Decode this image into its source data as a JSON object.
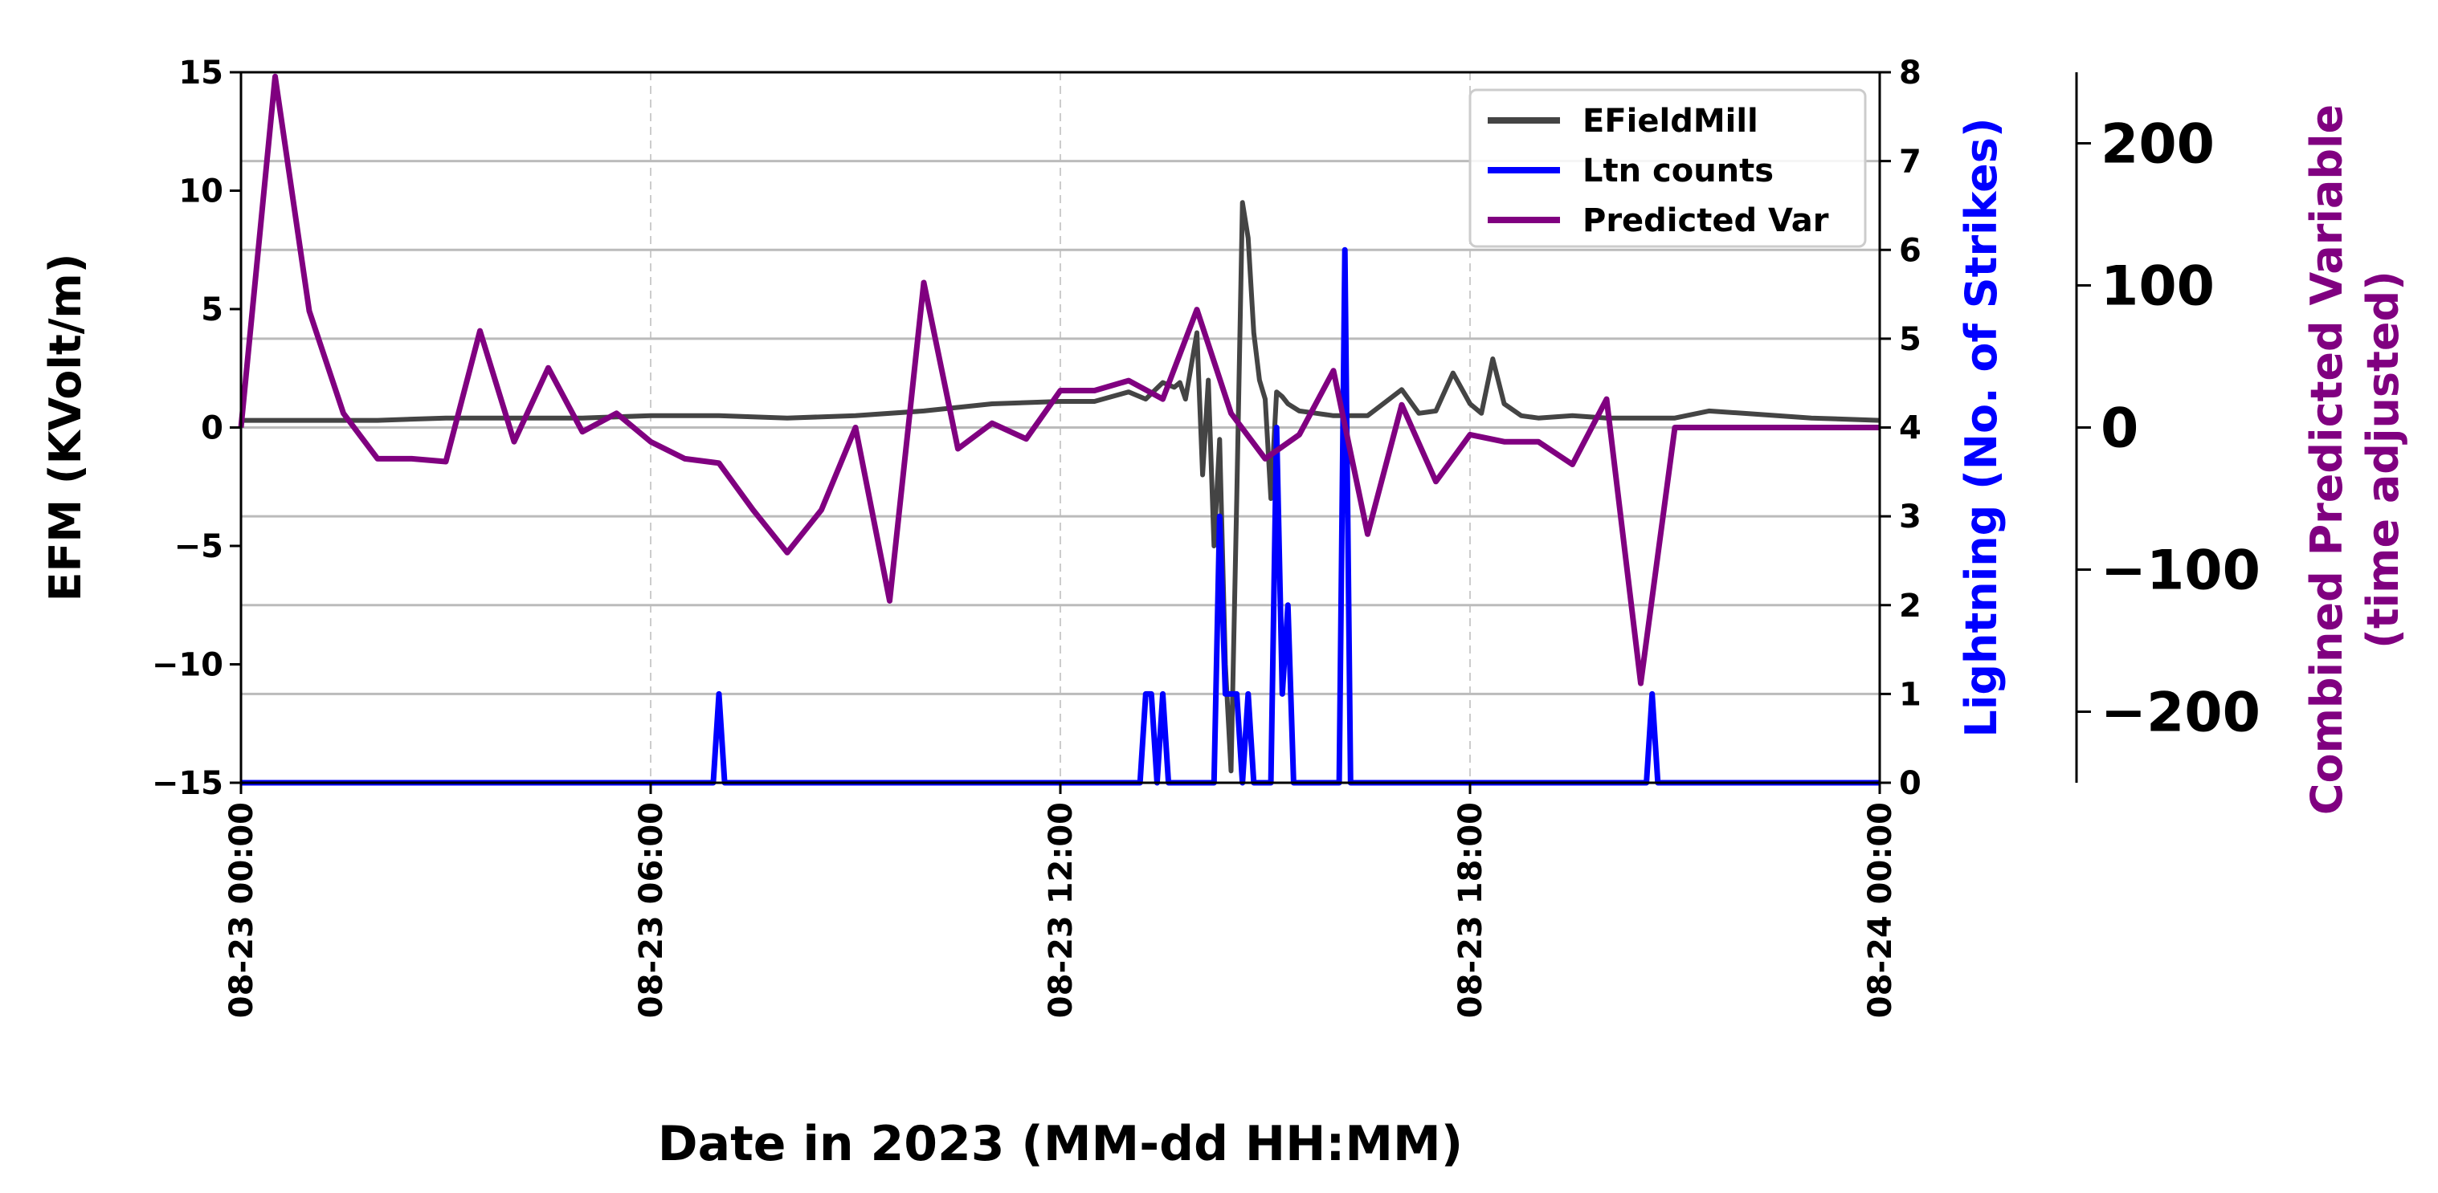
{
  "chart_data": {
    "type": "line",
    "xlabel": "Date in 2023 (MM-dd HH:MM)",
    "xlim": [
      "08-23 00:00",
      "08-24 00:00"
    ],
    "x_ticks": [
      "08-23 00:00",
      "08-23 06:00",
      "08-23 12:00",
      "08-23 18:00",
      "08-24 00:00"
    ],
    "left_axis": {
      "label": "EFM (KVolt/m)",
      "ylim": [
        -15,
        15
      ],
      "ticks": [
        15,
        10,
        5,
        0,
        -5,
        -10,
        -15
      ],
      "tick_labels": [
        "15",
        "10",
        "5",
        "0",
        "−5",
        "−10",
        "−15"
      ]
    },
    "right_axis": {
      "label": "Lightning (No. of Strikes)",
      "color": "#0000ff",
      "ylim": [
        0,
        8
      ],
      "ticks": [
        8,
        7,
        6,
        5,
        4,
        3,
        2,
        1,
        0
      ],
      "tick_labels": [
        "8",
        "7",
        "6",
        "5",
        "4",
        "3",
        "2",
        "1",
        "0"
      ]
    },
    "outer_axis": {
      "label_line1": "Combined Predicted Variable",
      "label_line2": "(time adjusted)",
      "color": "#800080",
      "ylim": [
        -250,
        250
      ],
      "ticks": [
        200,
        100,
        0,
        -100,
        -200
      ],
      "tick_labels": [
        "200",
        "100",
        "0",
        "−100",
        "−200"
      ]
    },
    "grid": "vertical dashed at x ticks; horizontal at right-axis ticks",
    "legend_position": "top-right",
    "legend": [
      "EFieldMill",
      "Ltn counts",
      "Predicted Var"
    ],
    "series": [
      {
        "name": "EFieldMill",
        "axis": "left",
        "color": "#444444",
        "x": [
          "08-23 00:00",
          "08-23 01:00",
          "08-23 02:00",
          "08-23 03:00",
          "08-23 04:00",
          "08-23 05:00",
          "08-23 06:00",
          "08-23 07:00",
          "08-23 08:00",
          "08-23 09:00",
          "08-23 10:00",
          "08-23 11:00",
          "08-23 12:00",
          "08-23 12:30",
          "08-23 13:00",
          "08-23 13:15",
          "08-23 13:30",
          "08-23 13:40",
          "08-23 13:45",
          "08-23 13:50",
          "08-23 14:00",
          "08-23 14:05",
          "08-23 14:10",
          "08-23 14:15",
          "08-23 14:20",
          "08-23 14:25",
          "08-23 14:30",
          "08-23 14:35",
          "08-23 14:40",
          "08-23 14:45",
          "08-23 14:50",
          "08-23 14:55",
          "08-23 15:00",
          "08-23 15:05",
          "08-23 15:10",
          "08-23 15:15",
          "08-23 15:20",
          "08-23 15:30",
          "08-23 15:45",
          "08-23 16:00",
          "08-23 16:15",
          "08-23 16:30",
          "08-23 17:00",
          "08-23 17:15",
          "08-23 17:30",
          "08-23 17:45",
          "08-23 18:00",
          "08-23 18:10",
          "08-23 18:20",
          "08-23 18:30",
          "08-23 18:45",
          "08-23 19:00",
          "08-23 19:30",
          "08-23 20:00",
          "08-23 20:30",
          "08-23 21:00",
          "08-23 21:30",
          "08-23 22:00",
          "08-23 23:00",
          "08-24 00:00"
        ],
        "values": [
          0.3,
          0.3,
          0.3,
          0.4,
          0.4,
          0.4,
          0.5,
          0.5,
          0.4,
          0.5,
          0.7,
          1.0,
          1.1,
          1.1,
          1.5,
          1.2,
          1.9,
          1.7,
          1.9,
          1.2,
          4.0,
          -2.0,
          2.0,
          -5.0,
          -0.5,
          -10.0,
          -14.5,
          -3.0,
          9.5,
          8.0,
          4.0,
          2.0,
          1.2,
          -3.0,
          1.5,
          1.3,
          1.0,
          0.7,
          0.6,
          0.5,
          0.5,
          0.5,
          1.6,
          0.6,
          0.7,
          2.3,
          1.0,
          0.6,
          2.9,
          1.0,
          0.5,
          0.4,
          0.5,
          0.4,
          0.4,
          0.4,
          0.7,
          0.6,
          0.4,
          0.3
        ]
      },
      {
        "name": "Ltn counts",
        "axis": "right",
        "color": "#0000ff",
        "x": [
          "08-23 00:00",
          "08-23 06:55",
          "08-23 07:00",
          "08-23 07:05",
          "08-23 13:10",
          "08-23 13:15",
          "08-23 13:20",
          "08-23 13:25",
          "08-23 13:30",
          "08-23 13:35",
          "08-23 13:40",
          "08-23 14:15",
          "08-23 14:20",
          "08-23 14:25",
          "08-23 14:30",
          "08-23 14:35",
          "08-23 14:40",
          "08-23 14:45",
          "08-23 14:50",
          "08-23 14:55",
          "08-23 15:00",
          "08-23 15:05",
          "08-23 15:10",
          "08-23 15:15",
          "08-23 15:20",
          "08-23 15:25",
          "08-23 15:30",
          "08-23 15:35",
          "08-23 15:40",
          "08-23 16:05",
          "08-23 16:10",
          "08-23 16:15",
          "08-23 16:20",
          "08-23 16:25",
          "08-23 20:35",
          "08-23 20:40",
          "08-23 20:45",
          "08-24 00:00"
        ],
        "values": [
          0,
          0,
          1,
          0,
          0,
          1,
          1,
          0,
          1,
          0,
          0,
          0,
          3,
          1,
          1,
          1,
          0,
          1,
          0,
          0,
          0,
          0,
          4,
          1,
          2,
          0,
          0,
          0,
          0,
          0,
          6,
          0,
          0,
          0,
          0,
          1,
          0,
          0
        ]
      },
      {
        "name": "Predicted Var",
        "axis": "outer",
        "color": "#800080",
        "x": [
          "08-23 00:00",
          "08-23 00:30",
          "08-23 01:00",
          "08-23 01:30",
          "08-23 02:00",
          "08-23 02:30",
          "08-23 03:00",
          "08-23 03:30",
          "08-23 04:00",
          "08-23 04:30",
          "08-23 05:00",
          "08-23 05:30",
          "08-23 06:00",
          "08-23 06:30",
          "08-23 07:00",
          "08-23 07:30",
          "08-23 08:00",
          "08-23 08:30",
          "08-23 09:00",
          "08-23 09:30",
          "08-23 10:00",
          "08-23 10:30",
          "08-23 11:00",
          "08-23 11:30",
          "08-23 12:00",
          "08-23 12:30",
          "08-23 13:00",
          "08-23 13:30",
          "08-23 14:00",
          "08-23 14:30",
          "08-23 15:00",
          "08-23 15:30",
          "08-23 16:00",
          "08-23 16:30",
          "08-23 17:00",
          "08-23 17:30",
          "08-23 18:00",
          "08-23 18:30",
          "08-23 19:00",
          "08-23 19:30",
          "08-23 20:00",
          "08-23 20:30",
          "08-23 21:00",
          "08-23 21:30",
          "08-23 22:00",
          "08-23 23:00",
          "08-24 00:00"
        ],
        "values": [
          0,
          247,
          82,
          10,
          -22,
          -22,
          -24,
          68,
          -10,
          42,
          -3,
          10,
          -10,
          -22,
          -25,
          -58,
          -88,
          -58,
          0,
          -122,
          102,
          -15,
          3,
          -8,
          26,
          26,
          33,
          20,
          83,
          10,
          -22,
          -5,
          40,
          -75,
          16,
          -38,
          -5,
          -10,
          -10,
          -26,
          20,
          -180,
          0,
          0,
          0,
          0,
          0
        ]
      }
    ]
  }
}
